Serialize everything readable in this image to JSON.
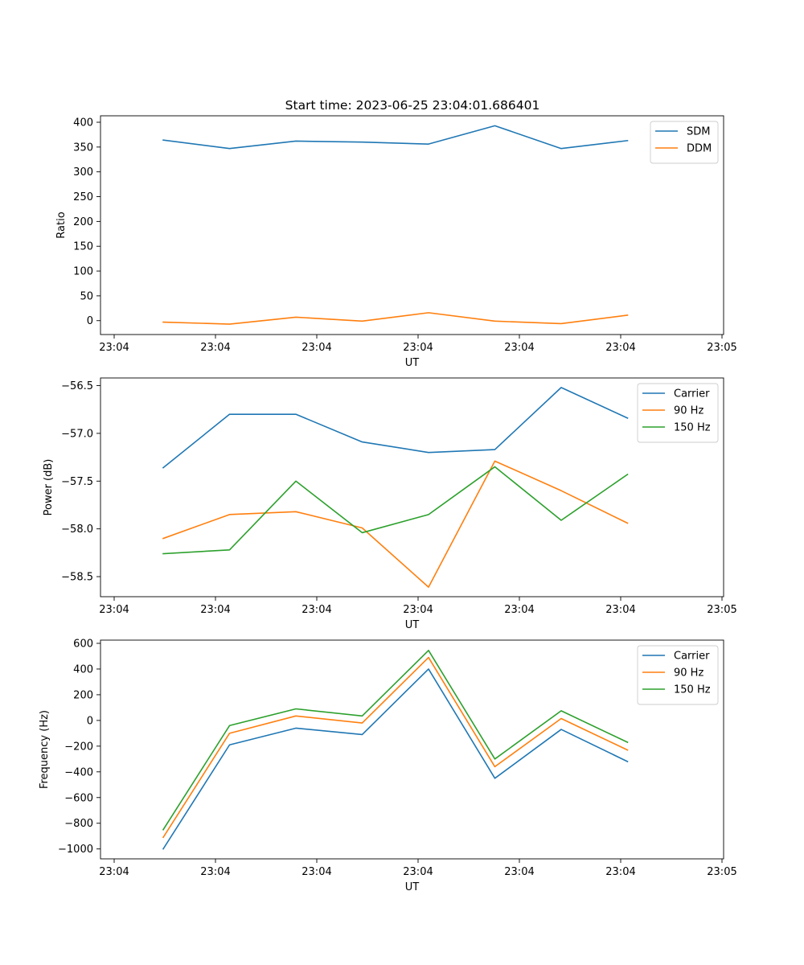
{
  "figure": {
    "title": "Start time: 2023-06-25 23:04:01.686401"
  },
  "chart_data": [
    {
      "type": "line",
      "title": "Start time: 2023-06-25 23:04:01.686401",
      "xlabel": "UT",
      "ylabel": "Ratio",
      "x_tick_labels": [
        "23:04",
        "23:04",
        "23:04",
        "23:04",
        "23:04",
        "23:04",
        "23:04",
        "23:05"
      ],
      "y_ticks": [
        0,
        50,
        100,
        150,
        200,
        250,
        300,
        350,
        400
      ],
      "ylim": [
        -28,
        413
      ],
      "grid": false,
      "legend": "top-right",
      "colors": {
        "SDM": "#1f77b4",
        "DDM": "#ff7f0e"
      },
      "series": [
        {
          "name": "SDM",
          "values": [
            364,
            347,
            362,
            360,
            356,
            393,
            347,
            363
          ]
        },
        {
          "name": "DDM",
          "values": [
            -3,
            -7,
            7,
            -1,
            16,
            -1,
            -6,
            11
          ]
        }
      ]
    },
    {
      "type": "line",
      "xlabel": "UT",
      "ylabel": "Power (dB)",
      "x_tick_labels": [
        "23:04",
        "23:04",
        "23:04",
        "23:04",
        "23:04",
        "23:04",
        "23:04",
        "23:05"
      ],
      "y_ticks": [
        -56.5,
        -57.0,
        -57.5,
        -58.0,
        -58.5
      ],
      "y_tick_labels": [
        "−56.5",
        "−57.0",
        "−57.5",
        "−58.0",
        "−58.5"
      ],
      "ylim": [
        -58.71,
        -56.42
      ],
      "grid": false,
      "legend": "top-right",
      "colors": {
        "Carrier": "#1f77b4",
        "90 Hz": "#ff7f0e",
        "150 Hz": "#2ca02c"
      },
      "series": [
        {
          "name": "Carrier",
          "values": [
            -57.36,
            -56.8,
            -56.8,
            -57.09,
            -57.2,
            -57.17,
            -56.52,
            -56.84
          ]
        },
        {
          "name": "90 Hz",
          "values": [
            -58.1,
            -57.85,
            -57.82,
            -57.99,
            -58.61,
            -57.29,
            -57.6,
            -57.94
          ]
        },
        {
          "name": "150 Hz",
          "values": [
            -58.26,
            -58.22,
            -57.5,
            -58.04,
            -57.85,
            -57.35,
            -57.91,
            -57.43
          ]
        }
      ]
    },
    {
      "type": "line",
      "xlabel": "UT",
      "ylabel": "Frequency (Hz)",
      "x_tick_labels": [
        "23:04",
        "23:04",
        "23:04",
        "23:04",
        "23:04",
        "23:04",
        "23:04",
        "23:05"
      ],
      "y_ticks": [
        600,
        400,
        200,
        0,
        -200,
        -400,
        -600,
        -800,
        -1000
      ],
      "y_tick_labels": [
        "600",
        "400",
        "200",
        "0",
        "−200",
        "−400",
        "−600",
        "−800",
        "−1000"
      ],
      "ylim": [
        -1077,
        625
      ],
      "grid": false,
      "legend": "top-right",
      "colors": {
        "Carrier": "#1f77b4",
        "90 Hz": "#ff7f0e",
        "150 Hz": "#2ca02c"
      },
      "series": [
        {
          "name": "Carrier",
          "values": [
            -1000,
            -190,
            -60,
            -110,
            400,
            -450,
            -70,
            -320
          ]
        },
        {
          "name": "90 Hz",
          "values": [
            -910,
            -100,
            35,
            -20,
            490,
            -360,
            15,
            -230
          ]
        },
        {
          "name": "150 Hz",
          "values": [
            -850,
            -40,
            90,
            35,
            545,
            -300,
            75,
            -170
          ]
        }
      ]
    }
  ]
}
